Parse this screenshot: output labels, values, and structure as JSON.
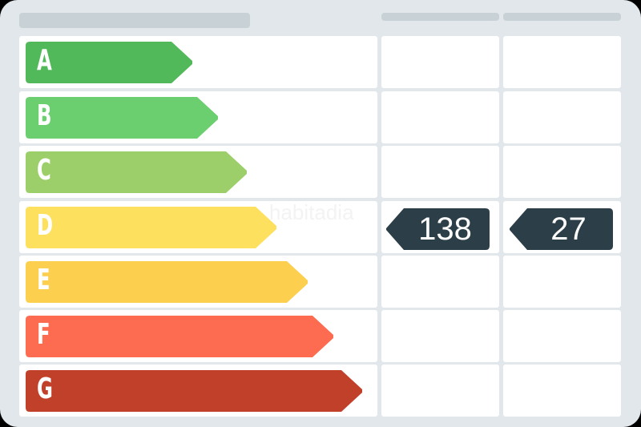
{
  "ratings": [
    {
      "letter": "A",
      "color": "#52b95a"
    },
    {
      "letter": "B",
      "color": "#6ccf6f"
    },
    {
      "letter": "C",
      "color": "#9ccf6a"
    },
    {
      "letter": "D",
      "color": "#fde05d"
    },
    {
      "letter": "E",
      "color": "#fccf4f"
    },
    {
      "letter": "F",
      "color": "#fd6b50"
    },
    {
      "letter": "G",
      "color": "#c1402a"
    }
  ],
  "indicators": [
    {
      "value": "138",
      "rating": "D",
      "color": "#2c3e48"
    },
    {
      "value": "27",
      "rating": "D",
      "color": "#2c3e48"
    }
  ],
  "watermark": "habitadia"
}
